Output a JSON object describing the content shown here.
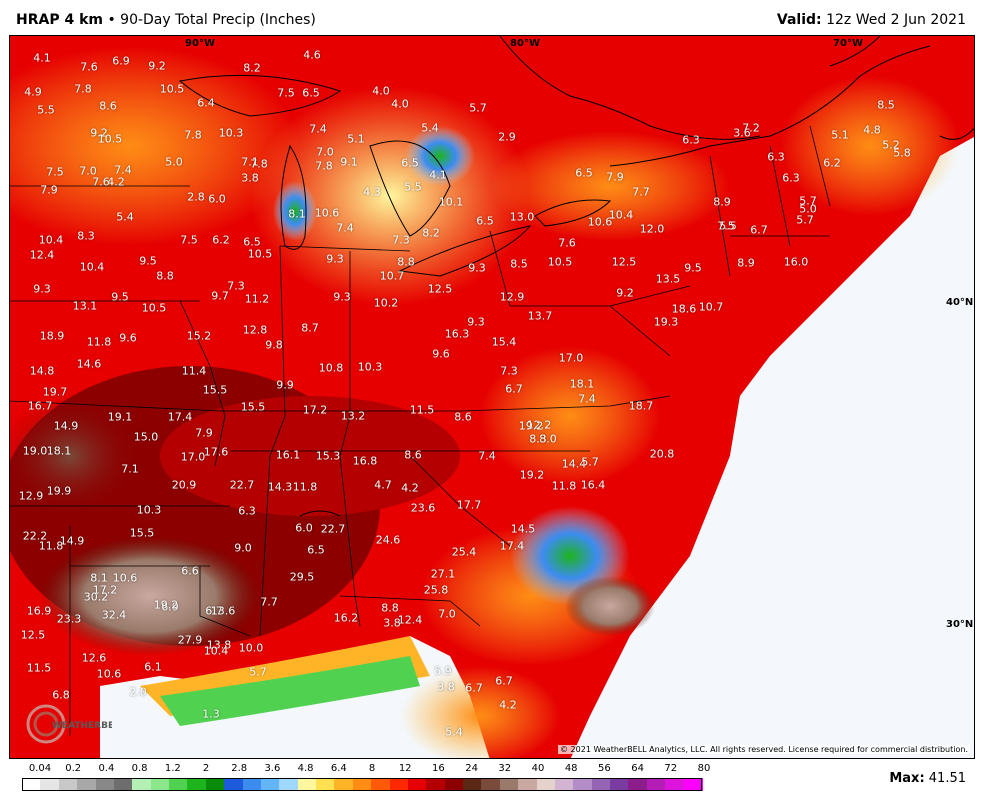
{
  "header": {
    "model": "HRAP 4 km",
    "bullet": "•",
    "product": "90-Day Total Precip (Inches)",
    "valid_label": "Valid:",
    "valid_time": "12z Wed 2 Jun 2021"
  },
  "grid_labels": {
    "lon_90": "90°W",
    "lon_80": "80°W",
    "lon_70": "70°W",
    "lat_40": "40°N",
    "lat_30": "30°N"
  },
  "copyright": "© 2021 WeatherBELL Analytics, LLC. All rights reserved. License required for commercial distribution.",
  "logo_text": "WEATHERBELL",
  "legend": {
    "labels": [
      "0.04",
      "0.2",
      "0.4",
      "0.8",
      "1.2",
      "2",
      "2.8",
      "3.6",
      "4.8",
      "6.4",
      "8",
      "12",
      "16",
      "24",
      "32",
      "40",
      "48",
      "56",
      "64",
      "72",
      "80"
    ],
    "colors": [
      "#ffffff",
      "#e6e6e6",
      "#c8c8c8",
      "#a8a8a8",
      "#888888",
      "#6e6e6e",
      "#b4f0b4",
      "#8ce68c",
      "#50d250",
      "#1eb41e",
      "#0a8c0a",
      "#1e5adc",
      "#3c8cf0",
      "#64b4f8",
      "#a0d8fc",
      "#fff6a0",
      "#ffe050",
      "#ffb428",
      "#ff8c14",
      "#ff5a0a",
      "#ff2800",
      "#e60000",
      "#b40000",
      "#8c0000",
      "#5a2814",
      "#7a4a3a",
      "#9a7a6a",
      "#c8a8a0",
      "#e6d2cc",
      "#d2b4d2",
      "#b48cc8",
      "#9664b4",
      "#7a3ca0",
      "#8c1e8c",
      "#b41eb4",
      "#dc14dc",
      "#ff00ff"
    ]
  },
  "max": {
    "label": "Max:",
    "value": "41.51"
  },
  "values": [
    "4.1",
    "7.6",
    "6.9",
    "9.2",
    "4.6",
    "4.9",
    "7.8",
    "10.5",
    "8.2",
    "5.5",
    "8.6",
    "6.4",
    "7.5",
    "6.5",
    "4.0",
    "4.0",
    "5.7",
    "9.2",
    "10.5",
    "7.8",
    "10.3",
    "7.4",
    "5.1",
    "5.4",
    "2.9",
    "6.3",
    "3.6",
    "5.0",
    "7.1",
    "7.0",
    "7.5",
    "7.0",
    "7.4",
    "7.8",
    "4.8",
    "7.2",
    "5.1",
    "5.2",
    "6.3",
    "7.8",
    "9.1",
    "6.5",
    "5.8",
    "8.5",
    "7.9",
    "7.6",
    "4.2",
    "3.8",
    "5.5",
    "4.1",
    "6.5",
    "7.9",
    "7.7",
    "6.3",
    "6.2",
    "5.7",
    "2.8",
    "6.0",
    "4.3",
    "8.1",
    "10.6",
    "10.1",
    "8.9",
    "5.5",
    "5.0",
    "5.7",
    "5.4",
    "7.4",
    "6.5",
    "13.0",
    "10.6",
    "10.4",
    "12.0",
    "7.5",
    "6.7",
    "10.4",
    "8.3",
    "7.5",
    "6.2",
    "6.5",
    "7.3",
    "8.2",
    "7.6",
    "12.4",
    "10.5",
    "9.5",
    "9.3",
    "8.8",
    "9.3",
    "8.5",
    "10.5",
    "12.5",
    "9.5",
    "8.9",
    "16.0",
    "10.4",
    "8.8",
    "10.7",
    "13.5",
    "9.3",
    "7.3",
    "12.5",
    "9.2",
    "13.1",
    "9.5",
    "9.7",
    "11.2",
    "9.3",
    "10.2",
    "12.9",
    "18.6",
    "10.7",
    "10.5",
    "13.7",
    "9.3",
    "15.2",
    "19.3",
    "18.9",
    "11.8",
    "9.6",
    "12.8",
    "8.7",
    "9.8",
    "16.3",
    "15.4",
    "14.8",
    "14.6",
    "11.4",
    "10.8",
    "10.3",
    "9.6",
    "7.3",
    "17.0",
    "16.7",
    "15.5",
    "9.9",
    "6.7",
    "18.1",
    "19.7",
    "19.1",
    "17.4",
    "15.5",
    "17.2",
    "13.2",
    "11.5",
    "8.6",
    "7.4",
    "12.2",
    "18.7",
    "14.9",
    "7.9",
    "19.2",
    "19.0",
    "18.1",
    "15.0",
    "17.0",
    "17.6",
    "16.1",
    "15.3",
    "16.8",
    "8.6",
    "7.4",
    "8.3",
    "8.0",
    "14.4",
    "5.7",
    "7.1",
    "19.2",
    "20.8",
    "12.9",
    "19.9",
    "20.9",
    "22.7",
    "14.3",
    "11.8",
    "4.7",
    "4.2",
    "11.8",
    "16.4",
    "10.3",
    "6.3",
    "23.6",
    "17.7",
    "22.2",
    "11.8",
    "14.9",
    "15.5",
    "6.0",
    "22.7",
    "14.5",
    "9.0",
    "6.5",
    "24.6",
    "17.4",
    "6.6",
    "29.5",
    "25.4",
    "8.1",
    "10.6",
    "27.1",
    "17.2",
    "6.9",
    "6.7",
    "25.8",
    "30.2",
    "19.2",
    "7.7",
    "16.2",
    "16.9",
    "23.3",
    "32.4",
    "13.6",
    "12.4",
    "8.8",
    "7.0",
    "12.5",
    "27.9",
    "13.8",
    "10.0",
    "10.4",
    "11.5",
    "12.6",
    "6.1",
    "5.7",
    "5.9",
    "10.6",
    "6.8",
    "2.0",
    "3.8",
    "3.8",
    "6.7",
    "6.7",
    "1.3",
    "4.2",
    "5.4"
  ]
}
